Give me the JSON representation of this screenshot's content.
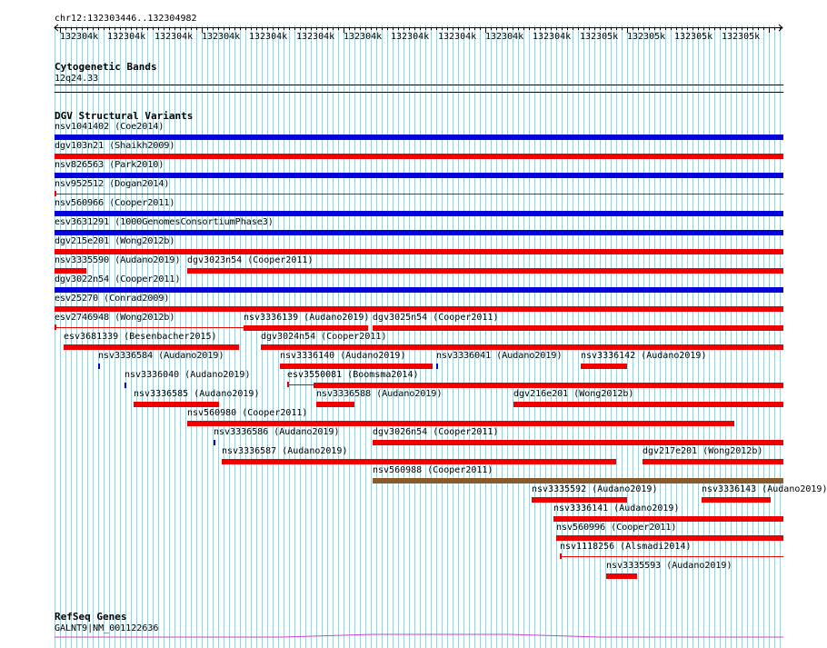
{
  "ruler": {
    "location": "chr12:132303446..132304982",
    "ticks": [
      "132304k",
      "132304k",
      "132304k",
      "132304k",
      "132304k",
      "132304k",
      "132304k",
      "132304k",
      "132304k",
      "132304k",
      "132304k",
      "132305k",
      "132305k",
      "132305k",
      "132305k"
    ]
  },
  "cytoband": {
    "title": "Cytogenetic Bands",
    "label": "12q24.33"
  },
  "dgv": {
    "title": "DGV Structural Variants",
    "features": [
      {
        "label": "nsv1041402 (Coe2014)",
        "color": "#0000dd"
      },
      {
        "label": "dgv103n21 (Shaikh2009)",
        "color": "#ee0000"
      },
      {
        "label": "nsv826563 (Park2010)",
        "color": "#0000dd"
      },
      {
        "label": "nsv952512 (Dogan2014)",
        "color": "#ee0000"
      },
      {
        "label": "nsv560966 (Cooper2011)",
        "color": "#0000dd"
      },
      {
        "label": "esv3631291 (1000GenomesConsortiumPhase3)",
        "color": "#0000dd"
      },
      {
        "label": "dgv215e201 (Wong2012b)",
        "color": "#ee0000"
      },
      {
        "label": "nsv3335590 (Audano2019)",
        "color": "#ee0000"
      },
      {
        "label": "dgv3023n54 (Cooper2011)",
        "color": "#ee0000"
      },
      {
        "label": "dgv3022n54 (Cooper2011)",
        "color": "#0000dd"
      },
      {
        "label": "esv25270 (Conrad2009)",
        "color": "#ee0000"
      },
      {
        "label": "esv2746948 (Wong2012b)",
        "color": "#ee0000"
      },
      {
        "label": "nsv3336139 (Audano2019)",
        "color": "#ee0000"
      },
      {
        "label": "dgv3025n54 (Cooper2011)",
        "color": "#ee0000"
      },
      {
        "label": "esv3681339 (Besenbacher2015)",
        "color": "#ee0000"
      },
      {
        "label": "dgv3024n54 (Cooper2011)",
        "color": "#ee0000"
      },
      {
        "label": "nsv3336584 (Audano2019)",
        "color": "#0000dd"
      },
      {
        "label": "nsv3336140 (Audano2019)",
        "color": "#ee0000"
      },
      {
        "label": "nsv3336041 (Audano2019)",
        "color": "#0000dd"
      },
      {
        "label": "nsv3336142 (Audano2019)",
        "color": "#ee0000"
      },
      {
        "label": "nsv3336040 (Audano2019)",
        "color": "#0000dd"
      },
      {
        "label": "esv3550081 (Boomsma2014)",
        "color": "#ee0000"
      },
      {
        "label": "nsv3336585 (Audano2019)",
        "color": "#ee0000"
      },
      {
        "label": "nsv3336588 (Audano2019)",
        "color": "#ee0000"
      },
      {
        "label": "dgv216e201 (Wong2012b)",
        "color": "#ee0000"
      },
      {
        "label": "nsv560980 (Cooper2011)",
        "color": "#ee0000"
      },
      {
        "label": "nsv3336586 (Audano2019)",
        "color": "#0000dd"
      },
      {
        "label": "dgv3026n54 (Cooper2011)",
        "color": "#ee0000"
      },
      {
        "label": "nsv3336587 (Audano2019)",
        "color": "#ee0000"
      },
      {
        "label": "dgv217e201 (Wong2012b)",
        "color": "#ee0000"
      },
      {
        "label": "nsv560988 (Cooper2011)",
        "color": "#8b5a2b"
      },
      {
        "label": "nsv3335592 (Audano2019)",
        "color": "#ee0000"
      },
      {
        "label": "nsv3336143 (Audano2019)",
        "color": "#ee0000"
      },
      {
        "label": "nsv3336141 (Audano2019)",
        "color": "#ee0000"
      },
      {
        "label": "nsv560996 (Cooper2011)",
        "color": "#ee0000"
      },
      {
        "label": "nsv1118256 (Alsmadi2014)",
        "color": "#ee0000"
      },
      {
        "label": "nsv3335593 (Audano2019)",
        "color": "#ee0000"
      }
    ]
  },
  "refseq": {
    "title": "RefSeq Genes",
    "label": "GALNT9|NM_001122636",
    "color": "#cc44cc"
  },
  "colors": {
    "grid": "#9fcfd9",
    "blue": "#0000dd",
    "red": "#ee0000",
    "brown": "#8b5a2b",
    "magenta": "#cc44cc"
  }
}
